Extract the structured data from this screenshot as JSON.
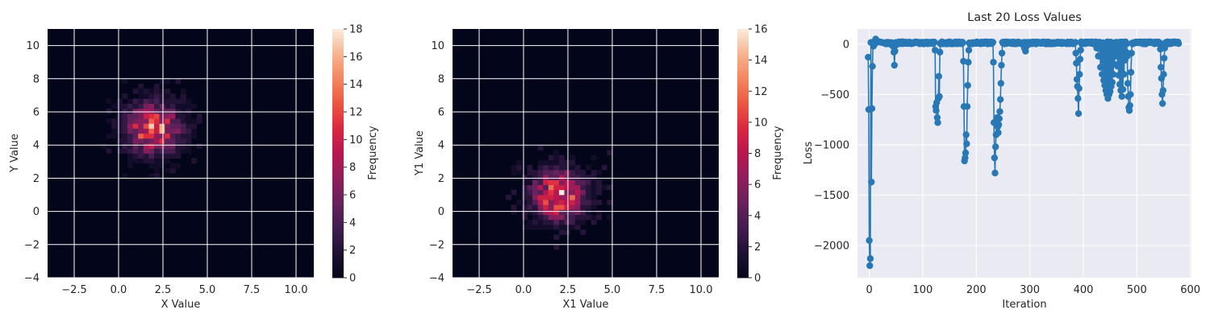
{
  "chart_data": [
    {
      "type": "heatmap",
      "xlabel": "X Value",
      "ylabel": "Y Value",
      "xlim": [
        -4,
        11
      ],
      "ylim": [
        -4,
        11
      ],
      "xticks": [
        -2.5,
        0.0,
        2.5,
        5.0,
        7.5,
        10.0
      ],
      "xtick_labels": [
        "−2.5",
        "0.0",
        "2.5",
        "5.0",
        "7.5",
        "10.0"
      ],
      "yticks": [
        -4,
        -2,
        0,
        2,
        4,
        6,
        8,
        10
      ],
      "ytick_labels": [
        "−4",
        "−2",
        "0",
        "2",
        "4",
        "6",
        "8",
        "10"
      ],
      "grid": true,
      "colorbar": {
        "label": "Frequency",
        "min": 0,
        "max": 18,
        "ticks": [
          0,
          2,
          4,
          6,
          8,
          10,
          12,
          14,
          16,
          18
        ],
        "tick_labels": [
          "0",
          "2",
          "4",
          "6",
          "8",
          "10",
          "12",
          "14",
          "16",
          "18"
        ]
      },
      "distribution": {
        "center_x": 2.0,
        "center_y": 5.0,
        "std_x": 1.0,
        "std_y": 1.0,
        "bin_size": 0.3,
        "peak": 18
      }
    },
    {
      "type": "heatmap",
      "xlabel": "X1 Value",
      "ylabel": "Y1 Value",
      "xlim": [
        -4,
        11
      ],
      "ylim": [
        -4,
        11
      ],
      "xticks": [
        -2.5,
        0.0,
        2.5,
        5.0,
        7.5,
        10.0
      ],
      "xtick_labels": [
        "−2.5",
        "0.0",
        "2.5",
        "5.0",
        "7.5",
        "10.0"
      ],
      "yticks": [
        -4,
        -2,
        0,
        2,
        4,
        6,
        8,
        10
      ],
      "ytick_labels": [
        "−4",
        "−2",
        "0",
        "2",
        "4",
        "6",
        "8",
        "10"
      ],
      "grid": true,
      "colorbar": {
        "label": "Frequency",
        "min": 0,
        "max": 16,
        "ticks": [
          0,
          2,
          4,
          6,
          8,
          10,
          12,
          14,
          16
        ],
        "tick_labels": [
          "0",
          "2",
          "4",
          "6",
          "8",
          "10",
          "12",
          "14",
          "16"
        ]
      },
      "distribution": {
        "center_x": 2.0,
        "center_y": 1.0,
        "std_x": 1.0,
        "std_y": 1.0,
        "bin_size": 0.3,
        "peak": 16
      }
    },
    {
      "type": "line",
      "title": "Last 20 Loss Values",
      "xlabel": "Iteration",
      "ylabel": "Loss",
      "xlim": [
        -22,
        602
      ],
      "ylim": [
        -2320,
        150
      ],
      "xticks": [
        0,
        100,
        200,
        300,
        400,
        500,
        600
      ],
      "xtick_labels": [
        "0",
        "100",
        "200",
        "300",
        "400",
        "500",
        "600"
      ],
      "yticks": [
        0,
        -500,
        -1000,
        -1500,
        -2000
      ],
      "ytick_labels": [
        "0",
        "−500",
        "−1000",
        "−1500",
        "−2000"
      ],
      "grid": true,
      "marker": "circle",
      "color": "#2878b5",
      "baseline": 12,
      "dips": [
        {
          "x": 0,
          "points": [
            [
              -2,
              -130
            ],
            [
              -1,
              -650
            ],
            [
              0,
              -1950
            ],
            [
              1,
              -2200
            ],
            [
              2,
              -2130
            ],
            [
              4,
              -1370
            ],
            [
              5,
              -640
            ],
            [
              6,
              -220
            ],
            [
              8,
              -20
            ],
            [
              10,
              30
            ],
            [
              12,
              50
            ]
          ]
        },
        {
          "x": 47,
          "points": [
            [
              44,
              -20
            ],
            [
              46,
              -80
            ],
            [
              47,
              -210
            ],
            [
              48,
              -70
            ],
            [
              50,
              -10
            ]
          ]
        },
        {
          "x": 127,
          "points": [
            [
              123,
              -60
            ],
            [
              124,
              -620
            ],
            [
              125,
              -660
            ],
            [
              126,
              -580
            ],
            [
              127,
              -730
            ],
            [
              128,
              -780
            ],
            [
              129,
              -540
            ],
            [
              130,
              -320
            ],
            [
              131,
              -520
            ],
            [
              132,
              -80
            ]
          ]
        },
        {
          "x": 180,
          "points": [
            [
              176,
              -170
            ],
            [
              177,
              -620
            ],
            [
              178,
              -1160
            ],
            [
              179,
              -1130
            ],
            [
              180,
              -1080
            ],
            [
              181,
              -900
            ],
            [
              182,
              -990
            ],
            [
              183,
              -620
            ],
            [
              184,
              -410
            ],
            [
              185,
              -180
            ],
            [
              186,
              -60
            ]
          ]
        },
        {
          "x": 240,
          "points": [
            [
              232,
              -180
            ],
            [
              233,
              -780
            ],
            [
              234,
              -1130
            ],
            [
              235,
              -1280
            ],
            [
              236,
              -1020
            ],
            [
              237,
              -900
            ],
            [
              238,
              -760
            ],
            [
              239,
              -730
            ],
            [
              240,
              -820
            ],
            [
              241,
              -880
            ],
            [
              242,
              -800
            ],
            [
              243,
              -740
            ],
            [
              244,
              -670
            ],
            [
              245,
              -550
            ],
            [
              246,
              -390
            ],
            [
              247,
              -210
            ],
            [
              248,
              -90
            ]
          ]
        },
        {
          "x": 300,
          "points": [
            [
              290,
              -40
            ],
            [
              292,
              -70
            ],
            [
              294,
              -20
            ]
          ]
        },
        {
          "x": 393,
          "points": [
            [
              386,
              -90
            ],
            [
              387,
              -190
            ],
            [
              388,
              -350
            ],
            [
              389,
              -420
            ],
            [
              390,
              -540
            ],
            [
              391,
              -690
            ],
            [
              392,
              -440
            ],
            [
              393,
              -300
            ],
            [
              394,
              -150
            ],
            [
              395,
              -60
            ]
          ]
        },
        {
          "x": 460,
          "points": [
            [
              425,
              -40
            ],
            [
              428,
              -120
            ],
            [
              432,
              -230
            ],
            [
              435,
              -300
            ],
            [
              438,
              -360
            ],
            [
              440,
              -410
            ],
            [
              442,
              -460
            ],
            [
              444,
              -500
            ],
            [
              446,
              -540
            ],
            [
              448,
              -500
            ],
            [
              450,
              -470
            ],
            [
              452,
              -420
            ],
            [
              454,
              -380
            ],
            [
              456,
              -300
            ],
            [
              458,
              -200
            ],
            [
              460,
              -120
            ],
            [
              462,
              -80
            ],
            [
              464,
              -220
            ],
            [
              466,
              -310
            ],
            [
              468,
              -400
            ],
            [
              470,
              -460
            ],
            [
              472,
              -520
            ],
            [
              474,
              -450
            ],
            [
              476,
              -300
            ],
            [
              478,
              -160
            ],
            [
              480,
              -80
            ]
          ]
        },
        {
          "x": 485,
          "points": [
            [
              482,
              -120
            ],
            [
              483,
              -390
            ],
            [
              484,
              -520
            ],
            [
              485,
              -630
            ],
            [
              486,
              -660
            ],
            [
              487,
              -610
            ],
            [
              488,
              -500
            ],
            [
              489,
              -280
            ],
            [
              490,
              -90
            ]
          ]
        },
        {
          "x": 548,
          "points": [
            [
              544,
              -50
            ],
            [
              545,
              -230
            ],
            [
              546,
              -340
            ],
            [
              547,
              -500
            ],
            [
              548,
              -590
            ],
            [
              549,
              -460
            ],
            [
              550,
              -300
            ],
            [
              551,
              -140
            ],
            [
              552,
              -40
            ]
          ]
        }
      ],
      "x_end": 578
    }
  ]
}
